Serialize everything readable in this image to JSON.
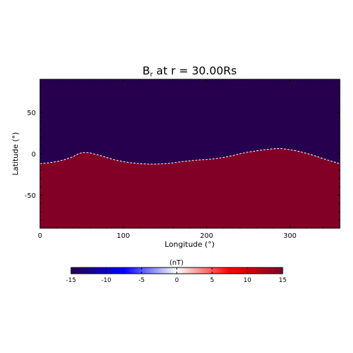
{
  "chart_data": {
    "type": "heatmap",
    "title": "B",
    "title_sub": "r",
    "title_rest": " at r = 30.00Rs",
    "xlabel": "Longitude (°)",
    "ylabel": "Latitude (°)",
    "xlim": [
      0,
      360
    ],
    "ylim": [
      -90,
      90
    ],
    "xticks": [
      0,
      100,
      200,
      300
    ],
    "yticks": [
      -50,
      0,
      50
    ],
    "neutral_line": {
      "lon": [
        0,
        10,
        20,
        30,
        40,
        45,
        50,
        55,
        60,
        70,
        80,
        90,
        100,
        110,
        120,
        130,
        140,
        150,
        160,
        170,
        180,
        190,
        200,
        210,
        220,
        230,
        240,
        250,
        260,
        270,
        280,
        285,
        290,
        300,
        310,
        320,
        330,
        340,
        350,
        360
      ],
      "lat": [
        -12,
        -11,
        -9.5,
        -7,
        -3.5,
        -0.5,
        1.2,
        1.5,
        1.0,
        -1.5,
        -4.5,
        -7.5,
        -9.5,
        -11,
        -12,
        -12.5,
        -12.5,
        -12,
        -11,
        -9.5,
        -8.5,
        -7.5,
        -7,
        -6,
        -4.5,
        -2.5,
        0,
        2,
        3.5,
        5,
        6,
        6.3,
        6.2,
        5,
        3,
        0.5,
        -2.5,
        -6,
        -9,
        -12
      ]
    },
    "regions": {
      "above": {
        "value": -15,
        "color": "#26004f"
      },
      "below": {
        "value": 15,
        "color": "#820026"
      }
    },
    "colorbar": {
      "label": "(nT)",
      "min": -15,
      "max": 15,
      "ticks": [
        -15,
        -10,
        -5,
        0,
        5,
        10,
        15
      ],
      "colors": [
        "#26004f",
        "#0000ff",
        "#ffffff",
        "#ff0000",
        "#820026"
      ]
    }
  }
}
